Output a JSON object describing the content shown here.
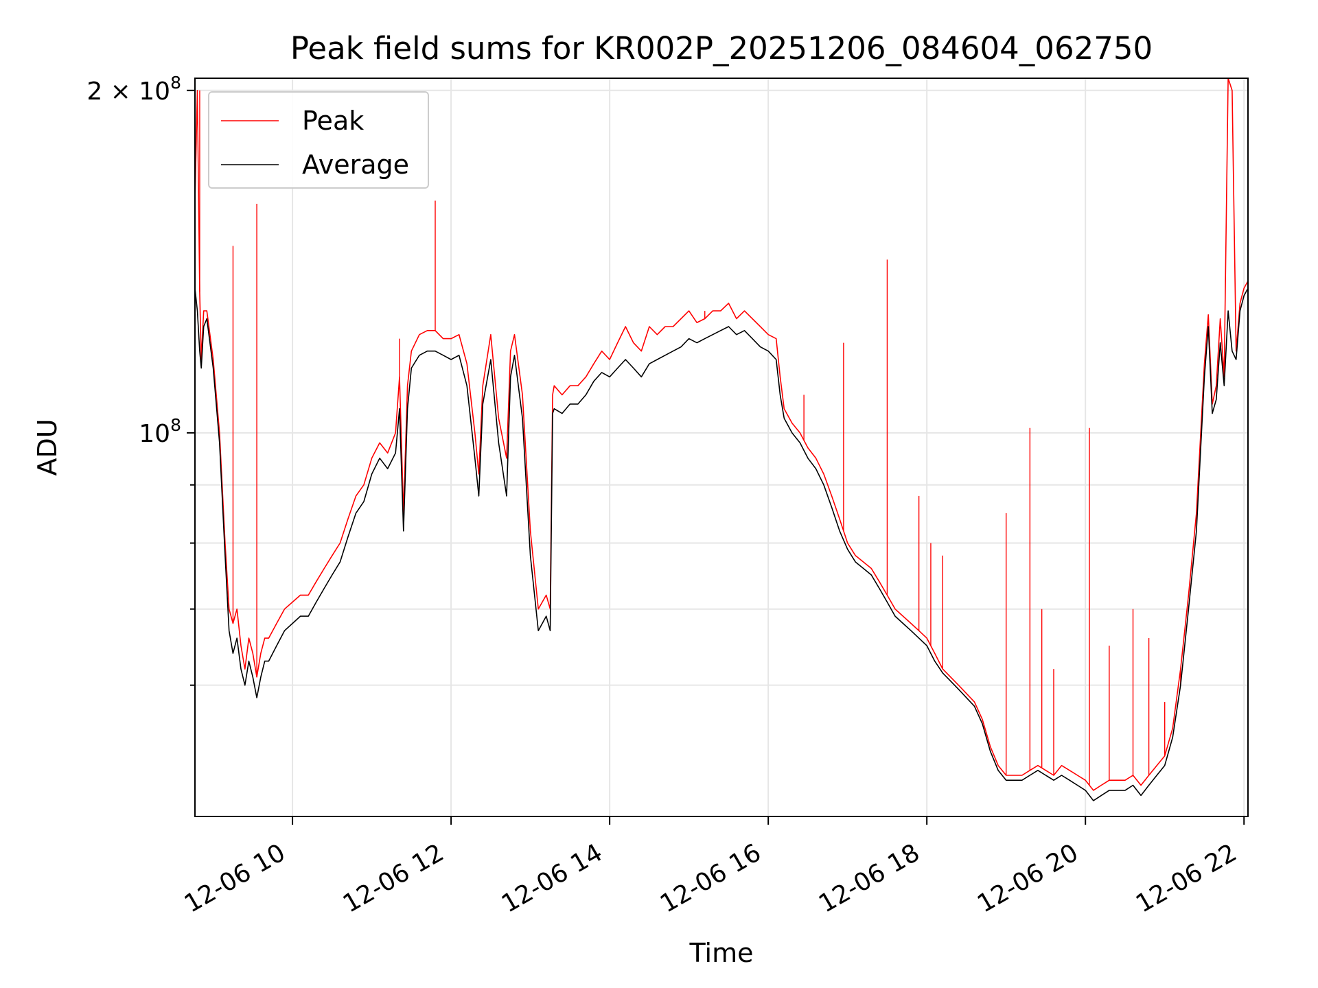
{
  "chart_data": {
    "type": "line",
    "title": "Peak field sums for KR002P_20251206_084604_062750",
    "xlabel": "Time",
    "ylabel": "ADU",
    "yscale": "log",
    "ylim": [
      46000000,
      205000000
    ],
    "xlim": [
      8.77,
      22.05
    ],
    "grid": true,
    "legend_position": "top-left",
    "x_ticks": [
      {
        "value": 10,
        "label": "12-06 10"
      },
      {
        "value": 12,
        "label": "12-06 12"
      },
      {
        "value": 14,
        "label": "12-06 14"
      },
      {
        "value": 16,
        "label": "12-06 16"
      },
      {
        "value": 18,
        "label": "12-06 18"
      },
      {
        "value": 20,
        "label": "12-06 20"
      },
      {
        "value": 22,
        "label": "12-06 22"
      }
    ],
    "y_major_ticks": [
      {
        "value": 100000000,
        "base": "10",
        "exp": "8",
        "coef": ""
      },
      {
        "value": 200000000,
        "base": "10",
        "exp": "8",
        "coef": "2 × "
      }
    ],
    "y_minor_ticks": [
      60000000,
      70000000,
      80000000,
      90000000
    ],
    "series": [
      {
        "name": "Peak",
        "color": "#ff0000",
        "x": [
          8.77,
          8.8,
          8.83,
          8.85,
          8.88,
          8.92,
          9.0,
          9.08,
          9.15,
          9.2,
          9.25,
          9.3,
          9.35,
          9.4,
          9.45,
          9.5,
          9.55,
          9.6,
          9.65,
          9.7,
          9.8,
          9.9,
          10.0,
          10.1,
          10.2,
          10.3,
          10.4,
          10.5,
          10.6,
          10.7,
          10.8,
          10.9,
          11.0,
          11.1,
          11.2,
          11.3,
          11.35,
          11.4,
          11.45,
          11.5,
          11.6,
          11.7,
          11.8,
          11.9,
          12.0,
          12.1,
          12.2,
          12.3,
          12.35,
          12.4,
          12.5,
          12.6,
          12.7,
          12.75,
          12.8,
          12.9,
          13.0,
          13.1,
          13.2,
          13.25,
          13.28,
          13.3,
          13.4,
          13.5,
          13.6,
          13.7,
          13.8,
          13.9,
          14.0,
          14.1,
          14.2,
          14.3,
          14.4,
          14.5,
          14.6,
          14.7,
          14.8,
          14.9,
          15.0,
          15.1,
          15.2,
          15.3,
          15.4,
          15.5,
          15.6,
          15.7,
          15.8,
          15.9,
          16.0,
          16.1,
          16.15,
          16.2,
          16.3,
          16.4,
          16.5,
          16.6,
          16.7,
          16.8,
          16.9,
          17.0,
          17.1,
          17.2,
          17.3,
          17.4,
          17.5,
          17.6,
          17.7,
          17.8,
          17.9,
          18.0,
          18.1,
          18.2,
          18.3,
          18.4,
          18.5,
          18.6,
          18.7,
          18.8,
          18.9,
          19.0,
          19.1,
          19.2,
          19.3,
          19.4,
          19.5,
          19.6,
          19.7,
          19.8,
          19.9,
          20.0,
          20.1,
          20.2,
          20.3,
          20.4,
          20.5,
          20.6,
          20.7,
          20.8,
          20.9,
          21.0,
          21.1,
          21.2,
          21.3,
          21.4,
          21.5,
          21.55,
          21.6,
          21.65,
          21.7,
          21.75,
          21.8,
          21.85,
          21.9,
          21.95,
          22.0,
          22.05
        ],
        "y": [
          160000000,
          200000000,
          133000000,
          116000000,
          128000000,
          128000000,
          116000000,
          100000000,
          80000000,
          70000000,
          68000000,
          70000000,
          65000000,
          62000000,
          66000000,
          64000000,
          61000000,
          64000000,
          66000000,
          66000000,
          68000000,
          70000000,
          71000000,
          72000000,
          72000000,
          74000000,
          76000000,
          78000000,
          80000000,
          84000000,
          88000000,
          90000000,
          95000000,
          98000000,
          96000000,
          100000000,
          112000000,
          85000000,
          110000000,
          118000000,
          122000000,
          123000000,
          123000000,
          121000000,
          121000000,
          122000000,
          115000000,
          100000000,
          92000000,
          110000000,
          122000000,
          103000000,
          95000000,
          118000000,
          122000000,
          108000000,
          82000000,
          70000000,
          72000000,
          70000000,
          108000000,
          110000000,
          108000000,
          110000000,
          110000000,
          112000000,
          115000000,
          118000000,
          116000000,
          120000000,
          124000000,
          120000000,
          118000000,
          124000000,
          122000000,
          124000000,
          124000000,
          126000000,
          128000000,
          125000000,
          126000000,
          128000000,
          128000000,
          130000000,
          126000000,
          128000000,
          126000000,
          124000000,
          122000000,
          121000000,
          112000000,
          105000000,
          102000000,
          100000000,
          97000000,
          95000000,
          92000000,
          88000000,
          84000000,
          80000000,
          78000000,
          77000000,
          76000000,
          74000000,
          72000000,
          70000000,
          69000000,
          68000000,
          67000000,
          66000000,
          64000000,
          62000000,
          61000000,
          60000000,
          59000000,
          58000000,
          56000000,
          53000000,
          51000000,
          50000000,
          50000000,
          50000000,
          50500000,
          51000000,
          50500000,
          50000000,
          51000000,
          50500000,
          50000000,
          49500000,
          48500000,
          49000000,
          49500000,
          49500000,
          49500000,
          50000000,
          49000000,
          50000000,
          51000000,
          52000000,
          55000000,
          62000000,
          72000000,
          85000000,
          115000000,
          127000000,
          106000000,
          110000000,
          126000000,
          112000000,
          205000000,
          200000000,
          118000000,
          130000000,
          134000000,
          136000000
        ],
        "spikes": [
          [
            8.83,
            200000000
          ],
          [
            9.25,
            146000000
          ],
          [
            9.55,
            159000000
          ],
          [
            11.35,
            121000000
          ],
          [
            11.8,
            160000000
          ],
          [
            15.2,
            128000000
          ],
          [
            16.45,
            108000000
          ],
          [
            16.95,
            120000000
          ],
          [
            17.5,
            142000000
          ],
          [
            17.9,
            88000000
          ],
          [
            18.05,
            80000000
          ],
          [
            18.2,
            78000000
          ],
          [
            19.0,
            85000000
          ],
          [
            19.3,
            101000000
          ],
          [
            19.45,
            70000000
          ],
          [
            19.6,
            62000000
          ],
          [
            20.05,
            101000000
          ],
          [
            20.3,
            65000000
          ],
          [
            20.6,
            70000000
          ],
          [
            20.8,
            66000000
          ],
          [
            21.0,
            58000000
          ],
          [
            21.2,
            60000000
          ]
        ]
      },
      {
        "name": "Average",
        "color": "#000000",
        "x": [
          8.77,
          8.8,
          8.83,
          8.85,
          8.88,
          8.92,
          9.0,
          9.08,
          9.15,
          9.2,
          9.25,
          9.3,
          9.35,
          9.4,
          9.45,
          9.5,
          9.55,
          9.6,
          9.65,
          9.7,
          9.8,
          9.9,
          10.0,
          10.1,
          10.2,
          10.3,
          10.4,
          10.5,
          10.6,
          10.7,
          10.8,
          10.9,
          11.0,
          11.1,
          11.2,
          11.3,
          11.35,
          11.4,
          11.45,
          11.5,
          11.6,
          11.7,
          11.8,
          11.9,
          12.0,
          12.1,
          12.2,
          12.3,
          12.35,
          12.4,
          12.5,
          12.6,
          12.7,
          12.75,
          12.8,
          12.9,
          13.0,
          13.1,
          13.2,
          13.25,
          13.28,
          13.3,
          13.4,
          13.5,
          13.6,
          13.7,
          13.8,
          13.9,
          14.0,
          14.1,
          14.2,
          14.3,
          14.4,
          14.5,
          14.6,
          14.7,
          14.8,
          14.9,
          15.0,
          15.1,
          15.2,
          15.3,
          15.4,
          15.5,
          15.6,
          15.7,
          15.8,
          15.9,
          16.0,
          16.1,
          16.15,
          16.2,
          16.3,
          16.4,
          16.5,
          16.6,
          16.7,
          16.8,
          16.9,
          17.0,
          17.1,
          17.2,
          17.3,
          17.4,
          17.5,
          17.6,
          17.7,
          17.8,
          17.9,
          18.0,
          18.1,
          18.2,
          18.3,
          18.4,
          18.5,
          18.6,
          18.7,
          18.8,
          18.9,
          19.0,
          19.1,
          19.2,
          19.3,
          19.4,
          19.5,
          19.6,
          19.7,
          19.8,
          19.9,
          20.0,
          20.1,
          20.2,
          20.3,
          20.4,
          20.5,
          20.6,
          20.7,
          20.8,
          20.9,
          21.0,
          21.1,
          21.2,
          21.3,
          21.4,
          21.5,
          21.55,
          21.6,
          21.65,
          21.7,
          21.75,
          21.8,
          21.85,
          21.9,
          21.95,
          22.0,
          22.05
        ],
        "y": [
          134000000,
          128000000,
          118000000,
          114000000,
          124000000,
          126000000,
          114000000,
          98000000,
          78000000,
          67000000,
          64000000,
          66000000,
          62000000,
          60000000,
          63000000,
          61000000,
          58500000,
          61000000,
          63000000,
          63000000,
          65000000,
          67000000,
          68000000,
          69000000,
          69000000,
          71000000,
          73000000,
          75000000,
          77000000,
          81000000,
          85000000,
          87000000,
          92000000,
          95000000,
          93000000,
          96000000,
          105000000,
          82000000,
          105000000,
          114000000,
          117000000,
          118000000,
          118000000,
          117000000,
          116000000,
          117000000,
          110000000,
          95000000,
          88000000,
          106000000,
          116000000,
          98000000,
          88000000,
          112000000,
          117000000,
          103000000,
          78000000,
          67000000,
          69000000,
          67000000,
          104000000,
          105000000,
          104000000,
          106000000,
          106000000,
          108000000,
          111000000,
          113000000,
          112000000,
          114000000,
          116000000,
          114000000,
          112000000,
          115000000,
          116000000,
          117000000,
          118000000,
          119000000,
          121000000,
          120000000,
          121000000,
          122000000,
          123000000,
          124000000,
          122000000,
          123000000,
          121000000,
          119000000,
          118000000,
          116000000,
          108000000,
          103000000,
          100000000,
          98000000,
          95000000,
          93000000,
          90000000,
          86000000,
          82000000,
          79000000,
          77000000,
          76000000,
          75000000,
          73000000,
          71000000,
          69000000,
          68000000,
          67000000,
          66000000,
          65000000,
          63000000,
          61500000,
          60500000,
          59500000,
          58500000,
          57500000,
          55500000,
          52500000,
          50500000,
          49500000,
          49500000,
          49500000,
          50000000,
          50500000,
          50000000,
          49500000,
          50000000,
          49500000,
          49000000,
          48500000,
          47500000,
          48000000,
          48500000,
          48500000,
          48500000,
          49000000,
          48000000,
          49000000,
          50000000,
          51000000,
          54000000,
          60000000,
          70000000,
          82000000,
          112000000,
          124000000,
          104000000,
          107000000,
          120000000,
          110000000,
          128000000,
          118000000,
          116000000,
          128000000,
          132000000,
          134000000
        ]
      }
    ]
  }
}
